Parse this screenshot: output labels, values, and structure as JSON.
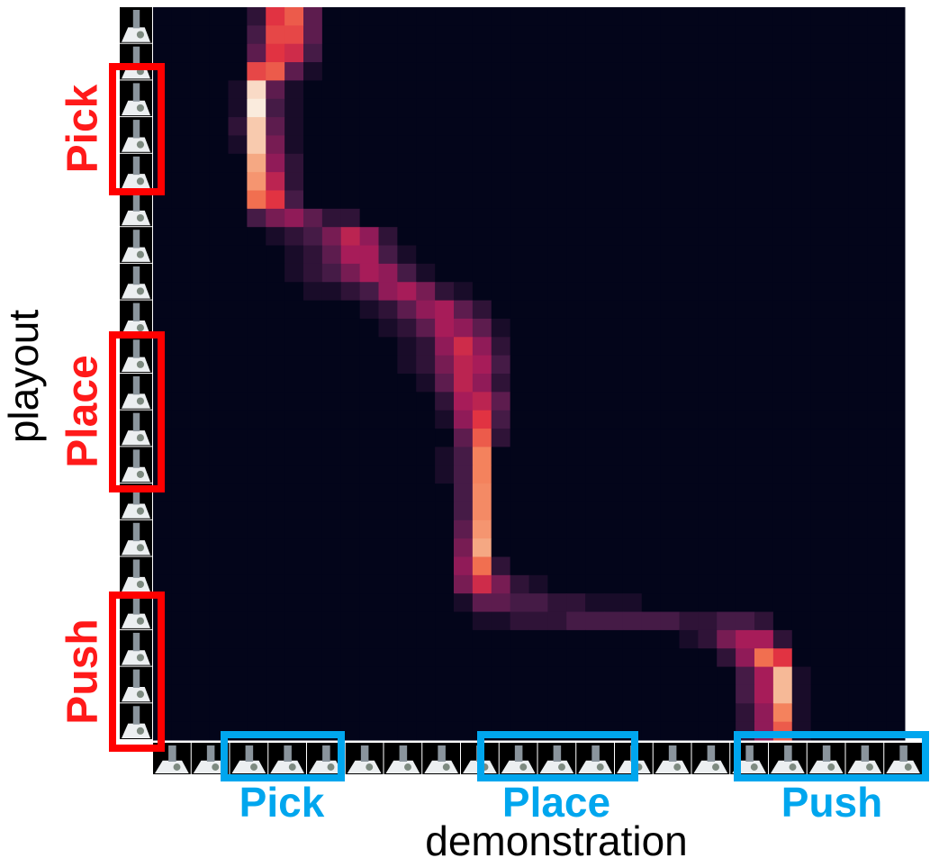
{
  "chart_data": {
    "type": "heatmap",
    "xlabel": "demonstration",
    "ylabel": "playout",
    "x_group_labels": [
      "Pick",
      "Place",
      "Push"
    ],
    "y_group_labels": [
      "Pick",
      "Place",
      "Push"
    ],
    "colormap": [
      "#03051a",
      "#4c1d4b",
      "#a11a5b",
      "#e13342",
      "#f37651",
      "#f6b48f",
      "#faebdd"
    ],
    "values": [
      [
        0,
        0,
        0,
        0,
        0,
        0.1,
        0.5,
        0.6,
        0.2,
        0,
        0,
        0,
        0,
        0,
        0,
        0,
        0,
        0,
        0,
        0,
        0,
        0,
        0,
        0,
        0,
        0,
        0,
        0,
        0,
        0,
        0,
        0,
        0,
        0,
        0,
        0,
        0,
        0,
        0,
        0
      ],
      [
        0,
        0,
        0,
        0,
        0,
        0.15,
        0.55,
        0.55,
        0.2,
        0,
        0,
        0,
        0,
        0,
        0,
        0,
        0,
        0,
        0,
        0,
        0,
        0,
        0,
        0,
        0,
        0,
        0,
        0,
        0,
        0,
        0,
        0,
        0,
        0,
        0,
        0,
        0,
        0,
        0,
        0
      ],
      [
        0,
        0,
        0,
        0,
        0,
        0.2,
        0.5,
        0.45,
        0.15,
        0,
        0,
        0,
        0,
        0,
        0,
        0,
        0,
        0,
        0,
        0,
        0,
        0,
        0,
        0,
        0,
        0,
        0,
        0,
        0,
        0,
        0,
        0,
        0,
        0,
        0,
        0,
        0,
        0,
        0,
        0
      ],
      [
        0,
        0,
        0,
        0,
        0,
        0.55,
        0.6,
        0.2,
        0.05,
        0,
        0,
        0,
        0,
        0,
        0,
        0,
        0,
        0,
        0,
        0,
        0,
        0,
        0,
        0,
        0,
        0,
        0,
        0,
        0,
        0,
        0,
        0,
        0,
        0,
        0,
        0,
        0,
        0,
        0,
        0
      ],
      [
        0,
        0,
        0,
        0,
        0.05,
        0.95,
        0.2,
        0.05,
        0,
        0,
        0,
        0,
        0,
        0,
        0,
        0,
        0,
        0,
        0,
        0,
        0,
        0,
        0,
        0,
        0,
        0,
        0,
        0,
        0,
        0,
        0,
        0,
        0,
        0,
        0,
        0,
        0,
        0,
        0,
        0
      ],
      [
        0,
        0,
        0,
        0,
        0.05,
        1,
        0.15,
        0.05,
        0,
        0,
        0,
        0,
        0,
        0,
        0,
        0,
        0,
        0,
        0,
        0,
        0,
        0,
        0,
        0,
        0,
        0,
        0,
        0,
        0,
        0,
        0,
        0,
        0,
        0,
        0,
        0,
        0,
        0,
        0,
        0
      ],
      [
        0,
        0,
        0,
        0,
        0.1,
        0.9,
        0.2,
        0.05,
        0,
        0,
        0,
        0,
        0,
        0,
        0,
        0,
        0,
        0,
        0,
        0,
        0,
        0,
        0,
        0,
        0,
        0,
        0,
        0,
        0,
        0,
        0,
        0,
        0,
        0,
        0,
        0,
        0,
        0,
        0,
        0
      ],
      [
        0,
        0,
        0,
        0,
        0.05,
        0.9,
        0.25,
        0.05,
        0,
        0,
        0,
        0,
        0,
        0,
        0,
        0,
        0,
        0,
        0,
        0,
        0,
        0,
        0,
        0,
        0,
        0,
        0,
        0,
        0,
        0,
        0,
        0,
        0,
        0,
        0,
        0,
        0,
        0,
        0,
        0
      ],
      [
        0,
        0,
        0,
        0,
        0,
        0.8,
        0.3,
        0.1,
        0,
        0,
        0,
        0,
        0,
        0,
        0,
        0,
        0,
        0,
        0,
        0,
        0,
        0,
        0,
        0,
        0,
        0,
        0,
        0,
        0,
        0,
        0,
        0,
        0,
        0,
        0,
        0,
        0,
        0,
        0,
        0
      ],
      [
        0,
        0,
        0,
        0,
        0,
        0.75,
        0.4,
        0.1,
        0,
        0,
        0,
        0,
        0,
        0,
        0,
        0,
        0,
        0,
        0,
        0,
        0,
        0,
        0,
        0,
        0,
        0,
        0,
        0,
        0,
        0,
        0,
        0,
        0,
        0,
        0,
        0,
        0,
        0,
        0,
        0
      ],
      [
        0,
        0,
        0,
        0,
        0,
        0.65,
        0.5,
        0.15,
        0,
        0,
        0,
        0,
        0,
        0,
        0,
        0,
        0,
        0,
        0,
        0,
        0,
        0,
        0,
        0,
        0,
        0,
        0,
        0,
        0,
        0,
        0,
        0,
        0,
        0,
        0,
        0,
        0,
        0,
        0,
        0
      ],
      [
        0,
        0,
        0,
        0,
        0,
        0.15,
        0.25,
        0.3,
        0.2,
        0.1,
        0.1,
        0,
        0,
        0,
        0,
        0,
        0,
        0,
        0,
        0,
        0,
        0,
        0,
        0,
        0,
        0,
        0,
        0,
        0,
        0,
        0,
        0,
        0,
        0,
        0,
        0,
        0,
        0,
        0,
        0
      ],
      [
        0,
        0,
        0,
        0,
        0,
        0,
        0.05,
        0.1,
        0.15,
        0.25,
        0.4,
        0.3,
        0.1,
        0,
        0,
        0,
        0,
        0,
        0,
        0,
        0,
        0,
        0,
        0,
        0,
        0,
        0,
        0,
        0,
        0,
        0,
        0,
        0,
        0,
        0,
        0,
        0,
        0,
        0,
        0
      ],
      [
        0,
        0,
        0,
        0,
        0,
        0,
        0,
        0.05,
        0.1,
        0.2,
        0.35,
        0.35,
        0.15,
        0.05,
        0,
        0,
        0,
        0,
        0,
        0,
        0,
        0,
        0,
        0,
        0,
        0,
        0,
        0,
        0,
        0,
        0,
        0,
        0,
        0,
        0,
        0,
        0,
        0,
        0,
        0
      ],
      [
        0,
        0,
        0,
        0,
        0,
        0,
        0,
        0.05,
        0.1,
        0.15,
        0.25,
        0.35,
        0.3,
        0.15,
        0.05,
        0,
        0,
        0,
        0,
        0,
        0,
        0,
        0,
        0,
        0,
        0,
        0,
        0,
        0,
        0,
        0,
        0,
        0,
        0,
        0,
        0,
        0,
        0,
        0,
        0
      ],
      [
        0,
        0,
        0,
        0,
        0,
        0,
        0,
        0,
        0.05,
        0.05,
        0.1,
        0.15,
        0.3,
        0.35,
        0.25,
        0.1,
        0.05,
        0,
        0,
        0,
        0,
        0,
        0,
        0,
        0,
        0,
        0,
        0,
        0,
        0,
        0,
        0,
        0,
        0,
        0,
        0,
        0,
        0,
        0,
        0
      ],
      [
        0,
        0,
        0,
        0,
        0,
        0,
        0,
        0,
        0,
        0,
        0,
        0.05,
        0.1,
        0.2,
        0.3,
        0.35,
        0.2,
        0.1,
        0,
        0,
        0,
        0,
        0,
        0,
        0,
        0,
        0,
        0,
        0,
        0,
        0,
        0,
        0,
        0,
        0,
        0,
        0,
        0,
        0,
        0
      ],
      [
        0,
        0,
        0,
        0,
        0,
        0,
        0,
        0,
        0,
        0,
        0,
        0,
        0.05,
        0.1,
        0.2,
        0.35,
        0.3,
        0.2,
        0.05,
        0,
        0,
        0,
        0,
        0,
        0,
        0,
        0,
        0,
        0,
        0,
        0,
        0,
        0,
        0,
        0,
        0,
        0,
        0,
        0,
        0
      ],
      [
        0,
        0,
        0,
        0,
        0,
        0,
        0,
        0,
        0,
        0,
        0,
        0,
        0,
        0.05,
        0.1,
        0.3,
        0.45,
        0.3,
        0.1,
        0,
        0,
        0,
        0,
        0,
        0,
        0,
        0,
        0,
        0,
        0,
        0,
        0,
        0,
        0,
        0,
        0,
        0,
        0,
        0,
        0
      ],
      [
        0,
        0,
        0,
        0,
        0,
        0,
        0,
        0,
        0,
        0,
        0,
        0,
        0,
        0.05,
        0.1,
        0.25,
        0.4,
        0.35,
        0.15,
        0,
        0,
        0,
        0,
        0,
        0,
        0,
        0,
        0,
        0,
        0,
        0,
        0,
        0,
        0,
        0,
        0,
        0,
        0,
        0,
        0
      ],
      [
        0,
        0,
        0,
        0,
        0,
        0,
        0,
        0,
        0,
        0,
        0,
        0,
        0,
        0,
        0.05,
        0.2,
        0.4,
        0.3,
        0.1,
        0,
        0,
        0,
        0,
        0,
        0,
        0,
        0,
        0,
        0,
        0,
        0,
        0,
        0,
        0,
        0,
        0,
        0,
        0,
        0,
        0
      ],
      [
        0,
        0,
        0,
        0,
        0,
        0,
        0,
        0,
        0,
        0,
        0,
        0,
        0,
        0,
        0,
        0.1,
        0.35,
        0.4,
        0.2,
        0,
        0,
        0,
        0,
        0,
        0,
        0,
        0,
        0,
        0,
        0,
        0,
        0,
        0,
        0,
        0,
        0,
        0,
        0,
        0,
        0
      ],
      [
        0,
        0,
        0,
        0,
        0,
        0,
        0,
        0,
        0,
        0,
        0,
        0,
        0,
        0,
        0,
        0.05,
        0.3,
        0.5,
        0.15,
        0,
        0,
        0,
        0,
        0,
        0,
        0,
        0,
        0,
        0,
        0,
        0,
        0,
        0,
        0,
        0,
        0,
        0,
        0,
        0,
        0
      ],
      [
        0,
        0,
        0,
        0,
        0,
        0,
        0,
        0,
        0,
        0,
        0,
        0,
        0,
        0,
        0,
        0,
        0.2,
        0.6,
        0.1,
        0,
        0,
        0,
        0,
        0,
        0,
        0,
        0,
        0,
        0,
        0,
        0,
        0,
        0,
        0,
        0,
        0,
        0,
        0,
        0,
        0
      ],
      [
        0,
        0,
        0,
        0,
        0,
        0,
        0,
        0,
        0,
        0,
        0,
        0,
        0,
        0,
        0,
        0.05,
        0.15,
        0.7,
        0,
        0,
        0,
        0,
        0,
        0,
        0,
        0,
        0,
        0,
        0,
        0,
        0,
        0,
        0,
        0,
        0,
        0,
        0,
        0,
        0,
        0
      ],
      [
        0,
        0,
        0,
        0,
        0,
        0,
        0,
        0,
        0,
        0,
        0,
        0,
        0,
        0,
        0,
        0.05,
        0.15,
        0.7,
        0,
        0,
        0,
        0,
        0,
        0,
        0,
        0,
        0,
        0,
        0,
        0,
        0,
        0,
        0,
        0,
        0,
        0,
        0,
        0,
        0,
        0
      ],
      [
        0,
        0,
        0,
        0,
        0,
        0,
        0,
        0,
        0,
        0,
        0,
        0,
        0,
        0,
        0,
        0,
        0.15,
        0.72,
        0,
        0,
        0,
        0,
        0,
        0,
        0,
        0,
        0,
        0,
        0,
        0,
        0,
        0,
        0,
        0,
        0,
        0,
        0,
        0,
        0,
        0
      ],
      [
        0,
        0,
        0,
        0,
        0,
        0,
        0,
        0,
        0,
        0,
        0,
        0,
        0,
        0,
        0,
        0,
        0.15,
        0.72,
        0,
        0,
        0,
        0,
        0,
        0,
        0,
        0,
        0,
        0,
        0,
        0,
        0,
        0,
        0,
        0,
        0,
        0,
        0,
        0,
        0,
        0
      ],
      [
        0,
        0,
        0,
        0,
        0,
        0,
        0,
        0,
        0,
        0,
        0,
        0,
        0,
        0,
        0,
        0,
        0.2,
        0.75,
        0,
        0,
        0,
        0,
        0,
        0,
        0,
        0,
        0,
        0,
        0,
        0,
        0,
        0,
        0,
        0,
        0,
        0,
        0,
        0,
        0,
        0
      ],
      [
        0,
        0,
        0,
        0,
        0,
        0,
        0,
        0,
        0,
        0,
        0,
        0,
        0,
        0,
        0,
        0,
        0.25,
        0.8,
        0,
        0,
        0,
        0,
        0,
        0,
        0,
        0,
        0,
        0,
        0,
        0,
        0,
        0,
        0,
        0,
        0,
        0,
        0,
        0,
        0,
        0
      ],
      [
        0,
        0,
        0,
        0,
        0,
        0,
        0,
        0,
        0,
        0,
        0,
        0,
        0,
        0,
        0,
        0,
        0.3,
        0.65,
        0.1,
        0,
        0,
        0,
        0,
        0,
        0,
        0,
        0,
        0,
        0,
        0,
        0,
        0,
        0,
        0,
        0,
        0,
        0,
        0,
        0,
        0
      ],
      [
        0,
        0,
        0,
        0,
        0,
        0,
        0,
        0,
        0,
        0,
        0,
        0,
        0,
        0,
        0,
        0,
        0.25,
        0.45,
        0.25,
        0.1,
        0.05,
        0,
        0,
        0,
        0,
        0,
        0,
        0,
        0,
        0,
        0,
        0,
        0,
        0,
        0,
        0,
        0,
        0,
        0,
        0
      ],
      [
        0,
        0,
        0,
        0,
        0,
        0,
        0,
        0,
        0,
        0,
        0,
        0,
        0,
        0,
        0,
        0,
        0.05,
        0.2,
        0.2,
        0.15,
        0.15,
        0.1,
        0.1,
        0.05,
        0.05,
        0.05,
        0,
        0,
        0,
        0,
        0,
        0,
        0,
        0,
        0,
        0,
        0,
        0,
        0,
        0
      ],
      [
        0,
        0,
        0,
        0,
        0,
        0,
        0,
        0,
        0,
        0,
        0,
        0,
        0,
        0,
        0,
        0,
        0,
        0.05,
        0.05,
        0.1,
        0.1,
        0.1,
        0.15,
        0.15,
        0.15,
        0.15,
        0.15,
        0.15,
        0.1,
        0.1,
        0.15,
        0.15,
        0.1,
        0,
        0,
        0,
        0,
        0,
        0,
        0
      ],
      [
        0,
        0,
        0,
        0,
        0,
        0,
        0,
        0,
        0,
        0,
        0,
        0,
        0,
        0,
        0,
        0,
        0,
        0,
        0,
        0,
        0,
        0,
        0,
        0,
        0,
        0,
        0,
        0,
        0.05,
        0.1,
        0.25,
        0.35,
        0.35,
        0.1,
        0,
        0,
        0,
        0,
        0,
        0
      ],
      [
        0,
        0,
        0,
        0,
        0,
        0,
        0,
        0,
        0,
        0,
        0,
        0,
        0,
        0,
        0,
        0,
        0,
        0,
        0,
        0,
        0,
        0,
        0,
        0,
        0,
        0,
        0,
        0,
        0,
        0,
        0.1,
        0.3,
        0.65,
        0.5,
        0,
        0,
        0,
        0,
        0,
        0
      ],
      [
        0,
        0,
        0,
        0,
        0,
        0,
        0,
        0,
        0,
        0,
        0,
        0,
        0,
        0,
        0,
        0,
        0,
        0,
        0,
        0,
        0,
        0,
        0,
        0,
        0,
        0,
        0,
        0,
        0,
        0,
        0,
        0.15,
        0.35,
        0.85,
        0.05,
        0,
        0,
        0,
        0,
        0
      ],
      [
        0,
        0,
        0,
        0,
        0,
        0,
        0,
        0,
        0,
        0,
        0,
        0,
        0,
        0,
        0,
        0,
        0,
        0,
        0,
        0,
        0,
        0,
        0,
        0,
        0,
        0,
        0,
        0,
        0,
        0,
        0,
        0.15,
        0.35,
        0.85,
        0.05,
        0,
        0,
        0,
        0,
        0
      ],
      [
        0,
        0,
        0,
        0,
        0,
        0,
        0,
        0,
        0,
        0,
        0,
        0,
        0,
        0,
        0,
        0,
        0,
        0,
        0,
        0,
        0,
        0,
        0,
        0,
        0,
        0,
        0,
        0,
        0,
        0,
        0,
        0.1,
        0.3,
        0.7,
        0.05,
        0,
        0,
        0,
        0,
        0
      ],
      [
        0,
        0,
        0,
        0,
        0,
        0,
        0,
        0,
        0,
        0,
        0,
        0,
        0,
        0,
        0,
        0,
        0,
        0,
        0,
        0,
        0,
        0,
        0,
        0,
        0,
        0,
        0,
        0,
        0,
        0,
        0,
        0.1,
        0.3,
        0.6,
        0.05,
        0,
        0,
        0,
        0,
        0
      ]
    ]
  }
}
